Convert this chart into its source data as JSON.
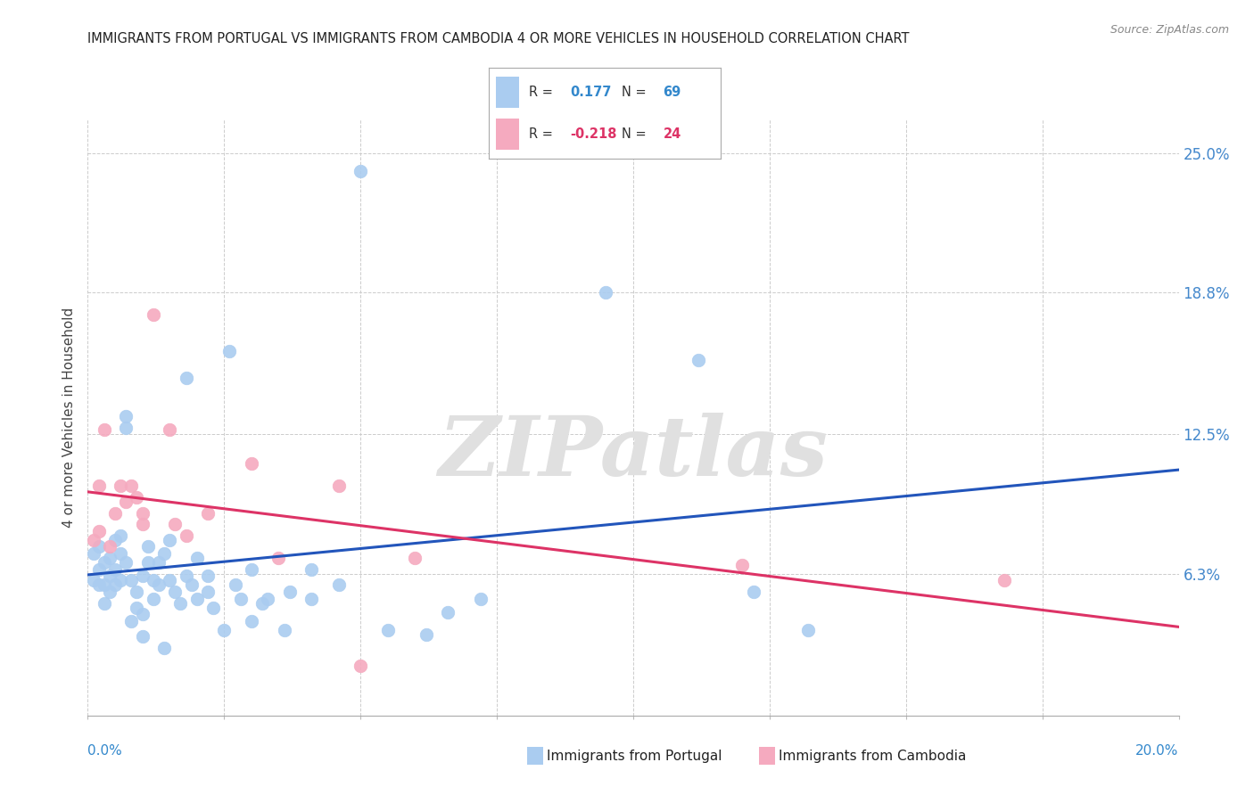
{
  "title": "IMMIGRANTS FROM PORTUGAL VS IMMIGRANTS FROM CAMBODIA 4 OR MORE VEHICLES IN HOUSEHOLD CORRELATION CHART",
  "source": "Source: ZipAtlas.com",
  "ylabel": "4 or more Vehicles in Household",
  "ytick_labels": [
    "6.3%",
    "12.5%",
    "18.8%",
    "25.0%"
  ],
  "ytick_values": [
    0.063,
    0.125,
    0.188,
    0.25
  ],
  "xmin": 0.0,
  "xmax": 0.2,
  "ymin": 0.0,
  "ymax": 0.265,
  "portugal_color": "#aaccf0",
  "cambodia_color": "#f5aabf",
  "portugal_line_color": "#2255bb",
  "cambodia_line_color": "#dd3366",
  "portugal_label": "Immigrants from Portugal",
  "cambodia_label": "Immigrants from Cambodia",
  "watermark": "ZIPatlas",
  "background_color": "#ffffff",
  "grid_color": "#cccccc",
  "portugal_dots": [
    [
      0.001,
      0.06
    ],
    [
      0.001,
      0.072
    ],
    [
      0.002,
      0.065
    ],
    [
      0.002,
      0.058
    ],
    [
      0.002,
      0.075
    ],
    [
      0.003,
      0.068
    ],
    [
      0.003,
      0.058
    ],
    [
      0.003,
      0.05
    ],
    [
      0.004,
      0.07
    ],
    [
      0.004,
      0.062
    ],
    [
      0.004,
      0.055
    ],
    [
      0.005,
      0.078
    ],
    [
      0.005,
      0.065
    ],
    [
      0.005,
      0.058
    ],
    [
      0.006,
      0.08
    ],
    [
      0.006,
      0.072
    ],
    [
      0.006,
      0.06
    ],
    [
      0.007,
      0.128
    ],
    [
      0.007,
      0.133
    ],
    [
      0.007,
      0.068
    ],
    [
      0.008,
      0.06
    ],
    [
      0.008,
      0.042
    ],
    [
      0.009,
      0.055
    ],
    [
      0.009,
      0.048
    ],
    [
      0.01,
      0.062
    ],
    [
      0.01,
      0.045
    ],
    [
      0.01,
      0.035
    ],
    [
      0.011,
      0.075
    ],
    [
      0.011,
      0.068
    ],
    [
      0.012,
      0.06
    ],
    [
      0.012,
      0.052
    ],
    [
      0.013,
      0.068
    ],
    [
      0.013,
      0.058
    ],
    [
      0.014,
      0.072
    ],
    [
      0.014,
      0.03
    ],
    [
      0.015,
      0.078
    ],
    [
      0.015,
      0.06
    ],
    [
      0.016,
      0.055
    ],
    [
      0.017,
      0.05
    ],
    [
      0.018,
      0.15
    ],
    [
      0.018,
      0.062
    ],
    [
      0.019,
      0.058
    ],
    [
      0.02,
      0.07
    ],
    [
      0.02,
      0.052
    ],
    [
      0.022,
      0.062
    ],
    [
      0.022,
      0.055
    ],
    [
      0.023,
      0.048
    ],
    [
      0.025,
      0.038
    ],
    [
      0.026,
      0.162
    ],
    [
      0.027,
      0.058
    ],
    [
      0.028,
      0.052
    ],
    [
      0.03,
      0.042
    ],
    [
      0.03,
      0.065
    ],
    [
      0.032,
      0.05
    ],
    [
      0.033,
      0.052
    ],
    [
      0.036,
      0.038
    ],
    [
      0.037,
      0.055
    ],
    [
      0.041,
      0.065
    ],
    [
      0.041,
      0.052
    ],
    [
      0.046,
      0.058
    ],
    [
      0.05,
      0.242
    ],
    [
      0.055,
      0.038
    ],
    [
      0.062,
      0.036
    ],
    [
      0.066,
      0.046
    ],
    [
      0.072,
      0.052
    ],
    [
      0.095,
      0.188
    ],
    [
      0.112,
      0.158
    ],
    [
      0.122,
      0.055
    ],
    [
      0.132,
      0.038
    ]
  ],
  "cambodia_dots": [
    [
      0.001,
      0.078
    ],
    [
      0.002,
      0.082
    ],
    [
      0.002,
      0.102
    ],
    [
      0.003,
      0.127
    ],
    [
      0.004,
      0.075
    ],
    [
      0.005,
      0.09
    ],
    [
      0.006,
      0.102
    ],
    [
      0.007,
      0.095
    ],
    [
      0.008,
      0.102
    ],
    [
      0.009,
      0.097
    ],
    [
      0.01,
      0.09
    ],
    [
      0.01,
      0.085
    ],
    [
      0.012,
      0.178
    ],
    [
      0.015,
      0.127
    ],
    [
      0.016,
      0.085
    ],
    [
      0.018,
      0.08
    ],
    [
      0.022,
      0.09
    ],
    [
      0.03,
      0.112
    ],
    [
      0.035,
      0.07
    ],
    [
      0.046,
      0.102
    ],
    [
      0.05,
      0.022
    ],
    [
      0.06,
      0.07
    ],
    [
      0.12,
      0.067
    ],
    [
      0.168,
      0.06
    ]
  ]
}
